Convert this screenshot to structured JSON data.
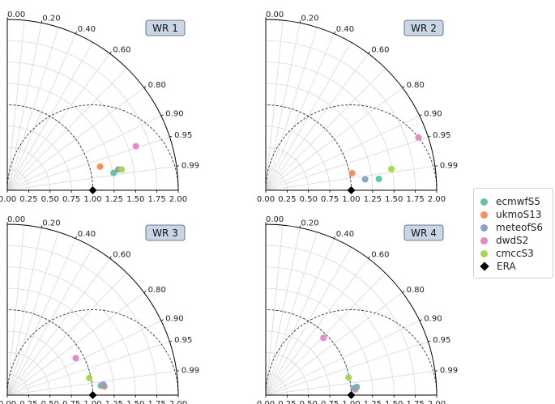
{
  "chart_data": [
    {
      "type": "taylor",
      "title": "WR 1",
      "std_ticks": [
        "0.00",
        "0.25",
        "0.50",
        "0.75",
        "1.00",
        "1.25",
        "1.50",
        "1.75",
        "2.00"
      ],
      "corr_ticks": [
        "0.00",
        "0.20",
        "0.40",
        "0.60",
        "0.80",
        "0.90",
        "0.95",
        "0.99"
      ],
      "std_range": [
        0,
        2.0
      ],
      "reference": {
        "name": "ERA",
        "std": 1.0
      },
      "points": [
        {
          "name": "ecmwfS5",
          "std": 1.26,
          "corr": 0.987
        },
        {
          "name": "ukmoS13",
          "std": 1.12,
          "corr": 0.969
        },
        {
          "name": "meteofS6",
          "std": 1.32,
          "corr": 0.983
        },
        {
          "name": "dwdS2",
          "std": 1.59,
          "corr": 0.946
        },
        {
          "name": "cmccS3",
          "std": 1.36,
          "corr": 0.984
        }
      ]
    },
    {
      "type": "taylor",
      "title": "WR 2",
      "std_ticks": [
        "0.00",
        "0.25",
        "0.50",
        "0.75",
        "1.00",
        "1.25",
        "1.50",
        "1.75",
        "2.00"
      ],
      "corr_ticks": [
        "0.00",
        "0.20",
        "0.40",
        "0.60",
        "0.80",
        "0.90",
        "0.95",
        "0.99"
      ],
      "std_range": [
        0,
        2.0
      ],
      "reference": {
        "name": "ERA",
        "std": 1.0
      },
      "points": [
        {
          "name": "ecmwfS5",
          "std": 1.33,
          "corr": 0.995
        },
        {
          "name": "ukmoS13",
          "std": 1.03,
          "corr": 0.981
        },
        {
          "name": "meteofS6",
          "std": 1.17,
          "corr": 0.994
        },
        {
          "name": "dwdS2",
          "std": 1.89,
          "corr": 0.945
        },
        {
          "name": "cmccS3",
          "std": 1.49,
          "corr": 0.986
        }
      ]
    },
    {
      "type": "taylor",
      "title": "WR 3",
      "std_ticks": [
        "0.00",
        "0.25",
        "0.50",
        "0.75",
        "1.00",
        "1.25",
        "1.50",
        "1.75",
        "2.00"
      ],
      "corr_ticks": [
        "0.00",
        "0.20",
        "0.40",
        "0.60",
        "0.80",
        "0.90",
        "0.95",
        "0.99"
      ],
      "std_range": [
        0,
        2.0
      ],
      "reference": {
        "name": "ERA",
        "std": 1.0
      },
      "points": [
        {
          "name": "ecmwfS5",
          "std": 1.1,
          "corr": 0.995
        },
        {
          "name": "ukmoS13",
          "std": 1.14,
          "corr": 0.996
        },
        {
          "name": "meteofS6",
          "std": 1.13,
          "corr": 0.994
        },
        {
          "name": "dwdS2",
          "std": 0.91,
          "corr": 0.88
        },
        {
          "name": "cmccS3",
          "std": 0.98,
          "corr": 0.979
        }
      ]
    },
    {
      "type": "taylor",
      "title": "WR 4",
      "std_ticks": [
        "0.00",
        "0.25",
        "0.50",
        "0.75",
        "1.00",
        "1.25",
        "1.50",
        "1.75",
        "2.00"
      ],
      "corr_ticks": [
        "0.00",
        "0.20",
        "0.40",
        "0.60",
        "0.80",
        "0.90",
        "0.95",
        "0.99"
      ],
      "std_range": [
        0,
        2.0
      ],
      "reference": {
        "name": "ERA",
        "std": 1.0
      },
      "points": [
        {
          "name": "ecmwfS5",
          "std": 1.07,
          "corr": 0.996
        },
        {
          "name": "ukmoS13",
          "std": 1.05,
          "corr": 0.998
        },
        {
          "name": "meteofS6",
          "std": 1.04,
          "corr": 0.997
        },
        {
          "name": "dwdS2",
          "std": 0.95,
          "corr": 0.71
        },
        {
          "name": "cmccS3",
          "std": 0.99,
          "corr": 0.978
        }
      ]
    }
  ],
  "legend": [
    {
      "name": "ecmwfS5",
      "color": "#66c2a5",
      "marker": "circle"
    },
    {
      "name": "ukmoS13",
      "color": "#fc8d62",
      "marker": "circle"
    },
    {
      "name": "meteofS6",
      "color": "#8da0cb",
      "marker": "circle"
    },
    {
      "name": "dwdS2",
      "color": "#e78ac3",
      "marker": "circle"
    },
    {
      "name": "cmccS3",
      "color": "#a6d854",
      "marker": "circle"
    },
    {
      "name": "ERA",
      "color": "#000000",
      "marker": "diamond"
    }
  ]
}
